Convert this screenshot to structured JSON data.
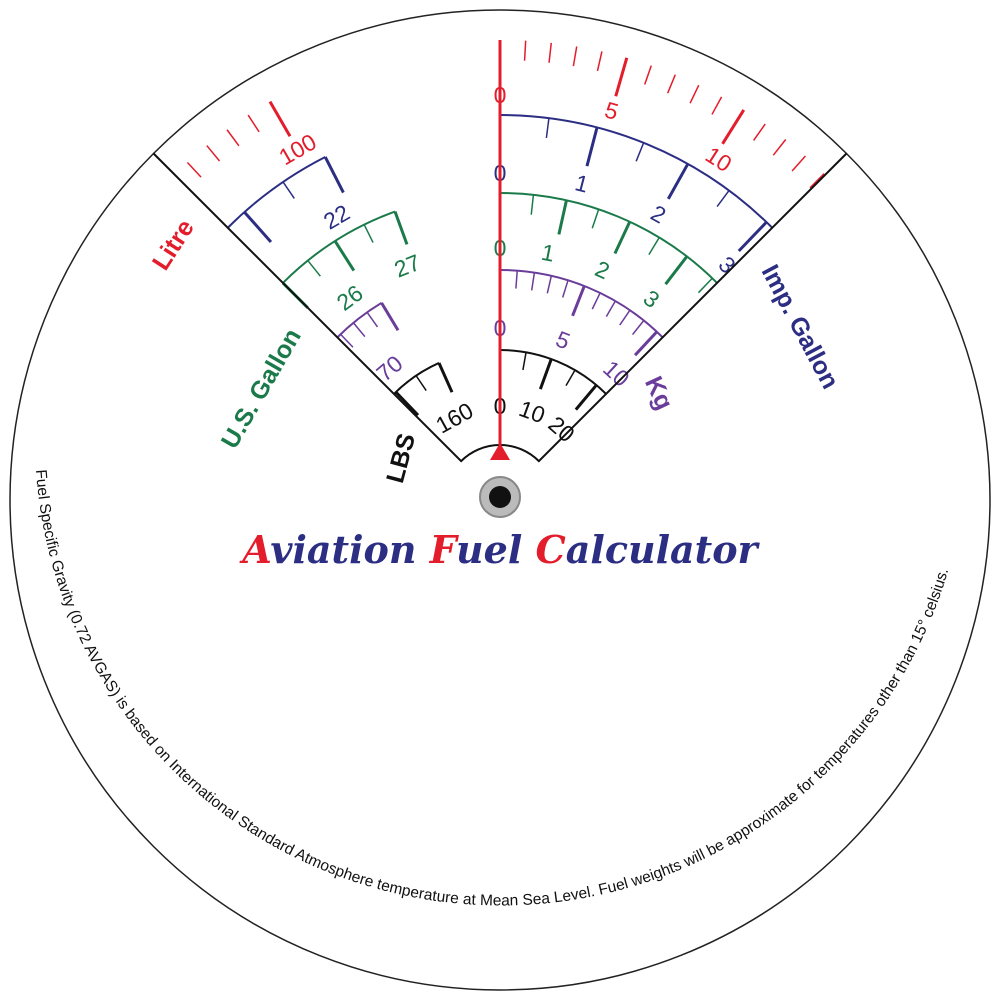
{
  "title": "Aviation Fuel Calculator",
  "note": "Fuel Specific Gravity (0.72 AVGAS) is based on International Standard Atmosphere temperature at Mean Sea Level. Fuel weights will be approximate for temperatures other than 15° celsius.",
  "scales": [
    {
      "name": "Litre",
      "labels": [
        0,
        5,
        10,
        100
      ]
    },
    {
      "name": "Imp. Gallon",
      "labels": [
        0,
        1,
        2,
        3,
        22
      ]
    },
    {
      "name": "U.S. Gallon",
      "labels": [
        0,
        1,
        2,
        3,
        26,
        27
      ]
    },
    {
      "name": "Kg",
      "labels": [
        0,
        5,
        10,
        70
      ]
    },
    {
      "name": "LBS",
      "labels": [
        0,
        10,
        20,
        160
      ]
    }
  ]
}
